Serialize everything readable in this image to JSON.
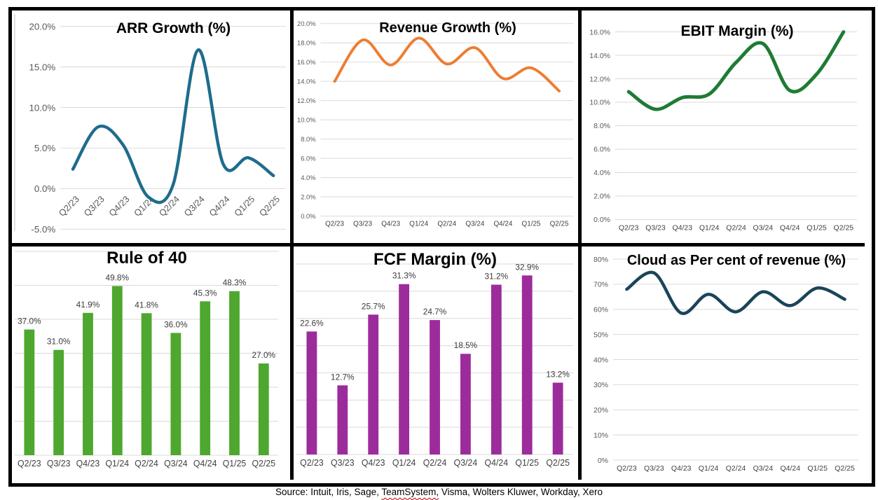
{
  "page": {
    "source_note": {
      "prefix": "Source: Intuit, Iris, Sage, ",
      "misspelled_word": "TeamSystem,",
      "suffix": " Visma, Wolters Kluwer, Workday, Xero"
    }
  },
  "chart_data": [
    {
      "type": "line",
      "title": "ARR Growth (%)",
      "categories": [
        "Q2/23",
        "Q3/23",
        "Q4/23",
        "Q1/24",
        "Q2/24",
        "Q3/24",
        "Q4/24",
        "Q1/25",
        "Q2/25"
      ],
      "values": [
        2.4,
        7.6,
        5.4,
        -1.0,
        0.5,
        17.1,
        3.0,
        3.8,
        1.6
      ],
      "ylim": [
        -5,
        20
      ],
      "ystep": 5,
      "tick_decimals": 1,
      "grid": true,
      "legend": "none",
      "color": "#1F6C8C"
    },
    {
      "type": "line",
      "title": "Revenue Growth (%)",
      "categories": [
        "Q2/23",
        "Q3/23",
        "Q4/23",
        "Q1/24",
        "Q2/24",
        "Q3/24",
        "Q4/24",
        "Q1/25",
        "Q2/25"
      ],
      "values": [
        14.0,
        18.3,
        15.7,
        18.5,
        15.8,
        17.5,
        14.3,
        15.4,
        13.0
      ],
      "ylim": [
        0,
        20
      ],
      "ystep": 2,
      "tick_decimals": 1,
      "grid": true,
      "legend": "none",
      "color": "#ED7D31"
    },
    {
      "type": "line",
      "title": "EBIT Margin (%)",
      "categories": [
        "Q2/23",
        "Q3/23",
        "Q4/23",
        "Q1/24",
        "Q2/24",
        "Q3/24",
        "Q4/24",
        "Q1/25",
        "Q2/25"
      ],
      "values": [
        10.9,
        9.4,
        10.4,
        10.7,
        13.4,
        15.0,
        11.0,
        12.4,
        16.0
      ],
      "ylim": [
        0,
        16
      ],
      "ystep": 2,
      "tick_decimals": 1,
      "grid": true,
      "legend": "none",
      "color": "#1E7B34"
    },
    {
      "type": "bar",
      "title": "Rule of 40",
      "categories": [
        "Q2/23",
        "Q3/23",
        "Q4/23",
        "Q1/24",
        "Q2/24",
        "Q3/24",
        "Q4/24",
        "Q1/25",
        "Q2/25"
      ],
      "values": [
        37.0,
        31.0,
        41.9,
        49.8,
        41.8,
        36.0,
        45.3,
        48.3,
        27.0
      ],
      "data_labels": [
        "37.0%",
        "31.0%",
        "41.9%",
        "49.8%",
        "41.8%",
        "36.0%",
        "45.3%",
        "48.3%",
        "27.0%"
      ],
      "ylim": [
        0,
        60
      ],
      "ystep": 10,
      "tick_decimals": 1,
      "grid": true,
      "legend": "none",
      "color": "#4EA72E"
    },
    {
      "type": "bar",
      "title": "FCF Margin (%)",
      "categories": [
        "Q2/23",
        "Q3/23",
        "Q4/23",
        "Q1/24",
        "Q2/24",
        "Q3/24",
        "Q4/24",
        "Q1/25",
        "Q2/25"
      ],
      "values": [
        22.6,
        12.7,
        25.7,
        31.3,
        24.7,
        18.5,
        31.2,
        32.9,
        13.2
      ],
      "data_labels": [
        "22.6%",
        "12.7%",
        "25.7%",
        "31.3%",
        "24.7%",
        "18.5%",
        "31.2%",
        "32.9%",
        "13.2%"
      ],
      "ylim": [
        0,
        35
      ],
      "ystep": 5,
      "tick_decimals": 1,
      "grid": true,
      "legend": "none",
      "color": "#9C2C9C"
    },
    {
      "type": "line",
      "title": "Cloud as Per cent of revenue (%)",
      "categories": [
        "Q2/23",
        "Q3/23",
        "Q4/23",
        "Q1/24",
        "Q2/24",
        "Q3/24",
        "Q4/24",
        "Q1/25",
        "Q2/25"
      ],
      "values": [
        68,
        74.5,
        58.5,
        66,
        59,
        67,
        61.5,
        68.5,
        64
      ],
      "ylim": [
        0,
        80
      ],
      "ystep": 10,
      "tick_decimals": 0,
      "grid": true,
      "legend": "none",
      "color": "#1B4458"
    }
  ],
  "colors": {
    "gridline": "#D9D9D9",
    "tick_label": "#595959",
    "x_label": "#404040",
    "data_label": "#3B3B3B",
    "border": "#000000",
    "spellcheck_underline": "#C00000"
  }
}
